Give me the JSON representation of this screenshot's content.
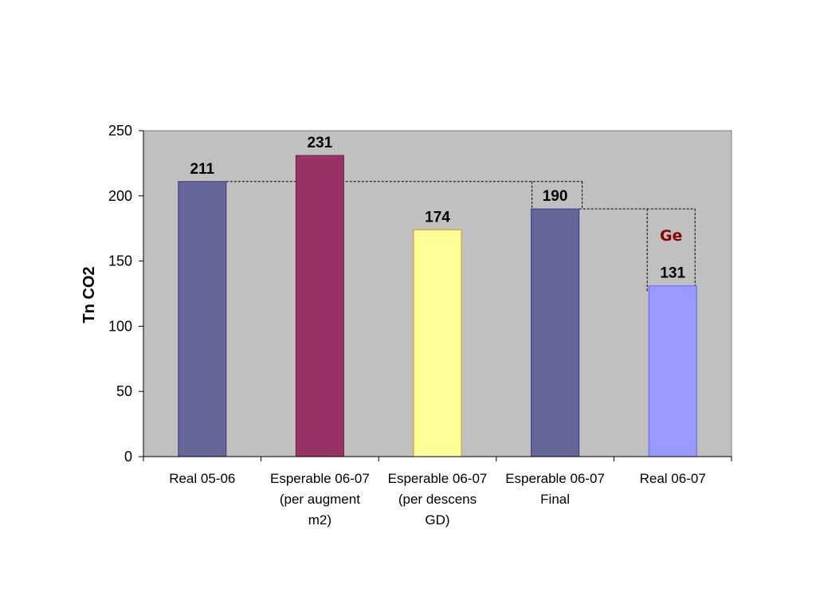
{
  "chart_data": {
    "type": "bar",
    "title": "",
    "xlabel": "",
    "ylabel": "Tn CO2",
    "ylim": [
      0,
      250
    ],
    "yticks": [
      0,
      50,
      100,
      150,
      200,
      250
    ],
    "grid": false,
    "legend": "none",
    "categories": [
      [
        "Real 05-06"
      ],
      [
        "Esperable 06-07",
        "(per augment",
        "m2)"
      ],
      [
        "Esperable 06-07",
        "(per descens",
        "GD)"
      ],
      [
        "Esperable 06-07",
        "Final"
      ],
      [
        "Real 06-07"
      ]
    ],
    "values": [
      211,
      231,
      174,
      190,
      131
    ],
    "value_labels": [
      "211",
      "231",
      "174",
      "190",
      "131"
    ],
    "bar_colors": [
      "#666699",
      "#993366",
      "#ffff99",
      "#666699",
      "#9999ff"
    ],
    "bar_edge_colors": [
      "#3c3c80",
      "#6e1f4a",
      "#e0902a",
      "#3c3c80",
      "#6666e0"
    ],
    "plot_background": "#c0c0c0",
    "annotation": {
      "text": "Ge",
      "color": "#8b0000"
    }
  }
}
